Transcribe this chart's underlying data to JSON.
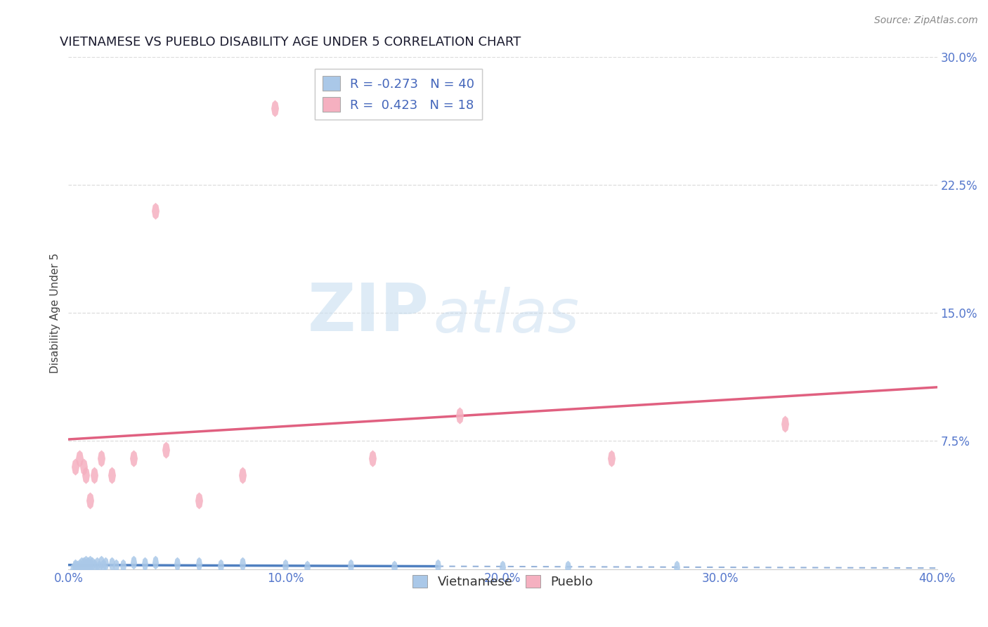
{
  "title": "VIETNAMESE VS PUEBLO DISABILITY AGE UNDER 5 CORRELATION CHART",
  "source": "Source: ZipAtlas.com",
  "ylabel": "Disability Age Under 5",
  "xlim": [
    0.0,
    0.4
  ],
  "ylim": [
    0.0,
    0.3
  ],
  "xtick_labels": [
    "0.0%",
    "",
    "",
    "",
    "10.0%",
    "",
    "",
    "",
    "20.0%",
    "",
    "",
    "",
    "30.0%",
    "",
    "",
    "",
    "40.0%"
  ],
  "xtick_vals": [
    0.0,
    0.025,
    0.05,
    0.075,
    0.1,
    0.125,
    0.15,
    0.175,
    0.2,
    0.225,
    0.25,
    0.275,
    0.3,
    0.325,
    0.35,
    0.375,
    0.4
  ],
  "xtick_major_labels": [
    "0.0%",
    "10.0%",
    "20.0%",
    "30.0%",
    "40.0%"
  ],
  "xtick_major_vals": [
    0.0,
    0.1,
    0.2,
    0.3,
    0.4
  ],
  "ytick_labels": [
    "30.0%",
    "22.5%",
    "15.0%",
    "7.5%"
  ],
  "ytick_vals": [
    0.3,
    0.225,
    0.15,
    0.075
  ],
  "watermark_ZIP": "ZIP",
  "watermark_atlas": "atlas",
  "legend_label1": "R = -0.273   N = 40",
  "legend_label2": "R =  0.423   N = 18",
  "legend_labels_bottom": [
    "Vietnamese",
    "Pueblo"
  ],
  "color_vietnamese": "#aac8e8",
  "color_pueblo": "#f5b0c0",
  "color_trendline_vietnamese": "#5080c0",
  "color_trendline_pueblo": "#e06080",
  "axis_label_color": "#4466bb",
  "tick_label_color": "#5577cc",
  "background_color": "#ffffff",
  "grid_color": "#dddddd",
  "vietnamese_x": [
    0.002,
    0.003,
    0.003,
    0.004,
    0.005,
    0.005,
    0.006,
    0.007,
    0.007,
    0.008,
    0.008,
    0.009,
    0.009,
    0.01,
    0.01,
    0.011,
    0.012,
    0.013,
    0.014,
    0.015,
    0.016,
    0.017,
    0.02,
    0.022,
    0.025,
    0.03,
    0.035,
    0.04,
    0.05,
    0.06,
    0.07,
    0.08,
    0.1,
    0.11,
    0.13,
    0.15,
    0.17,
    0.2,
    0.23,
    0.28
  ],
  "vietnamese_y": [
    0.0,
    0.001,
    0.002,
    0.001,
    0.002,
    0.0,
    0.003,
    0.001,
    0.003,
    0.002,
    0.004,
    0.001,
    0.003,
    0.002,
    0.004,
    0.003,
    0.002,
    0.003,
    0.001,
    0.004,
    0.002,
    0.003,
    0.003,
    0.002,
    0.002,
    0.004,
    0.003,
    0.004,
    0.003,
    0.003,
    0.002,
    0.003,
    0.002,
    0.001,
    0.002,
    0.001,
    0.002,
    0.001,
    0.001,
    0.001
  ],
  "pueblo_x": [
    0.003,
    0.005,
    0.007,
    0.008,
    0.01,
    0.012,
    0.015,
    0.02,
    0.03,
    0.04,
    0.045,
    0.06,
    0.08,
    0.095,
    0.14,
    0.18,
    0.25,
    0.33
  ],
  "pueblo_y": [
    0.06,
    0.065,
    0.06,
    0.055,
    0.04,
    0.055,
    0.065,
    0.055,
    0.065,
    0.21,
    0.07,
    0.04,
    0.055,
    0.27,
    0.065,
    0.09,
    0.065,
    0.085
  ],
  "viet_trendline_solid_end": 0.17,
  "source_fontsize": 10,
  "title_fontsize": 13,
  "tick_fontsize": 12
}
